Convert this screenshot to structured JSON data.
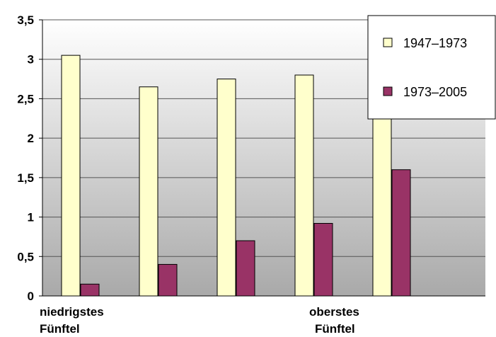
{
  "chart_data": {
    "type": "bar",
    "categories": [
      [
        "niedrigstes",
        "Fünftel"
      ],
      [
        "",
        ""
      ],
      [
        "",
        ""
      ],
      [
        "",
        ""
      ],
      [
        "oberstes",
        "Fünftel"
      ]
    ],
    "series": [
      {
        "name": "1947–1973",
        "values": [
          3.05,
          2.65,
          2.75,
          2.8,
          2.45
        ],
        "color": "#ffffcc"
      },
      {
        "name": "1973–2005",
        "values": [
          0.15,
          0.4,
          0.7,
          0.92,
          1.6
        ],
        "color": "#993366"
      }
    ],
    "yticks": [
      "0",
      "0,5",
      "1",
      "1,5",
      "2",
      "2,5",
      "3",
      "3,5"
    ],
    "ylim": [
      0,
      3.5
    ],
    "grid": true,
    "legend": "top-right",
    "plot_background": "gradient-white-to-grey"
  }
}
